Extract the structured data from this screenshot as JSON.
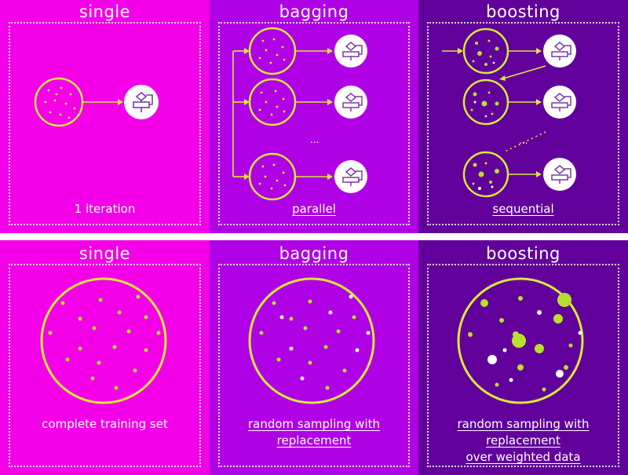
{
  "colors": {
    "single_bg": "#f400e8",
    "bagging_bg": "#b000e6",
    "boosting_bg": "#62009c",
    "circle_stroke": "#d8e83a",
    "dot_green": "#b7e02c",
    "dot_white": "#ffffff",
    "model_icon_bg": "#ffffff",
    "model_icon_stroke": "#7a3aa8"
  },
  "icons": {
    "model": "flowchart-model-icon"
  },
  "top": {
    "single": {
      "title": "single",
      "caption": "1 iteration"
    },
    "bagging": {
      "title": "bagging",
      "caption": "parallel",
      "ellipsis": "..."
    },
    "boosting": {
      "title": "boosting",
      "caption": "sequential",
      "ellipsis": "..."
    }
  },
  "bottom": {
    "single": {
      "title": "single",
      "caption": "complete training set"
    },
    "bagging": {
      "title": "bagging",
      "caption_line1": "random sampling with",
      "caption_line2": "replacement"
    },
    "boosting": {
      "title": "boosting",
      "caption_line1": "random sampling with",
      "caption_line2": "replacement",
      "caption_line3": "over weighted data"
    }
  }
}
